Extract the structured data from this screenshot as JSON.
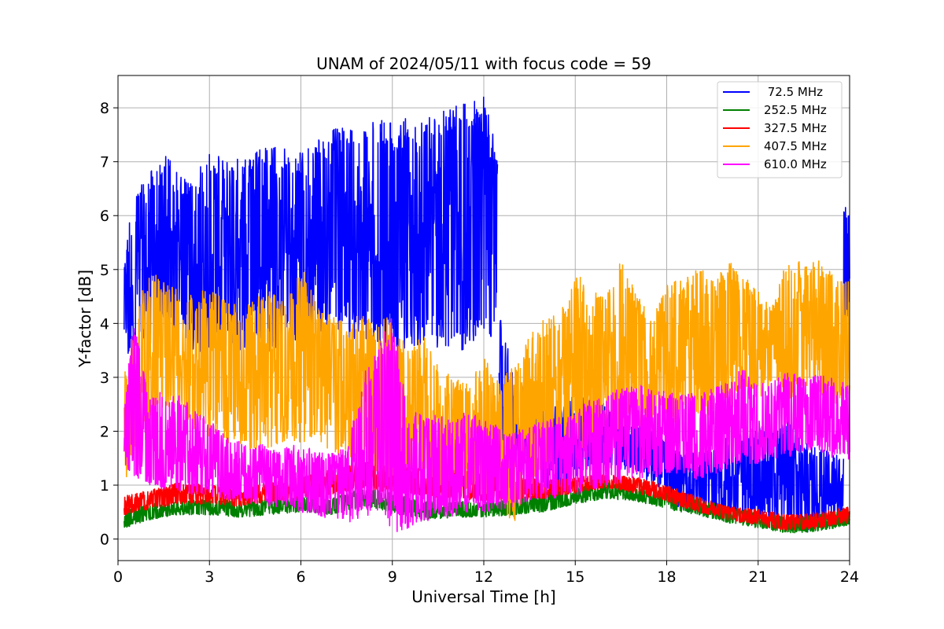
{
  "chart_data": {
    "type": "line",
    "title": "UNAM of 2024/05/11 with focus code = 59",
    "xlabel": "Universal Time [h]",
    "ylabel": "Y-factor [dB]",
    "xlim": [
      0,
      24
    ],
    "ylim": [
      -0.4,
      8.6
    ],
    "xticks": [
      0,
      3,
      6,
      9,
      12,
      15,
      18,
      21,
      24
    ],
    "yticks": [
      0,
      1,
      2,
      3,
      4,
      5,
      6,
      7,
      8
    ],
    "grid": true,
    "legend_position": "top-right",
    "series": [
      {
        "name": " 72.5 MHz",
        "color": "#0000ff",
        "segments": [
          {
            "x": [
              0.2,
              0.5,
              1,
              1.5,
              2,
              2.4,
              3,
              4,
              5,
              6,
              7,
              8,
              9,
              10,
              11,
              12,
              12.45
            ],
            "low": [
              3.2,
              3.5,
              3.6,
              3.8,
              3.8,
              3.5,
              3.4,
              3.5,
              3.4,
              3.6,
              3.7,
              3.6,
              3.5,
              3.6,
              3.4,
              3.6,
              3.8
            ],
            "high": [
              5.2,
              6.5,
              6.8,
              7.2,
              6.8,
              6.6,
              7.2,
              7.1,
              7.3,
              7.2,
              7.6,
              7.7,
              7.8,
              7.8,
              8.1,
              8.2,
              7.3
            ]
          },
          {
            "x": [
              12.5,
              13,
              13.5,
              14,
              14.5,
              15,
              15.5,
              16,
              16.5,
              17,
              17.5,
              18,
              18.5,
              19,
              19.5,
              20,
              20.5,
              21,
              21.5,
              22,
              22.5,
              23,
              23.5,
              23.8
            ],
            "low": [
              1.6,
              1.5,
              1.2,
              0.9,
              0.9,
              1.1,
              1.2,
              1.4,
              1.3,
              1.2,
              1.0,
              0.9,
              0.5,
              0.5,
              0.5,
              0.4,
              0.3,
              0.4,
              0.3,
              0.2,
              0.1,
              0.2,
              0.4,
              0.5
            ],
            "high": [
              4.4,
              2.9,
              2.8,
              2.6,
              2.5,
              2.8,
              2.7,
              2.5,
              2.3,
              2.2,
              2.0,
              1.8,
              1.6,
              1.6,
              1.7,
              1.9,
              2.0,
              2.1,
              2.0,
              2.2,
              1.8,
              1.7,
              1.6,
              1.5
            ]
          },
          {
            "x": [
              23.8,
              23.9,
              24
            ],
            "low": [
              3.6,
              4.0,
              4.2
            ],
            "high": [
              6.4,
              6.2,
              6.1
            ]
          }
        ]
      },
      {
        "name": "252.5 MHz",
        "color": "#008000",
        "segments": [
          {
            "x": [
              0.2,
              1,
              2,
              3,
              4,
              5,
              6,
              7,
              8,
              9,
              10,
              11,
              12,
              13,
              14,
              15,
              16,
              17,
              18,
              19,
              20,
              21,
              22,
              23,
              24
            ],
            "low": [
              0.2,
              0.35,
              0.45,
              0.45,
              0.4,
              0.45,
              0.5,
              0.45,
              0.6,
              0.5,
              0.35,
              0.4,
              0.4,
              0.45,
              0.5,
              0.65,
              0.75,
              0.7,
              0.55,
              0.45,
              0.3,
              0.2,
              0.1,
              0.15,
              0.25
            ],
            "high": [
              0.55,
              0.65,
              0.7,
              0.75,
              0.7,
              0.75,
              0.8,
              0.75,
              0.95,
              0.85,
              0.7,
              0.7,
              0.7,
              0.75,
              0.85,
              0.95,
              1.05,
              1.0,
              0.9,
              0.75,
              0.6,
              0.5,
              0.4,
              0.45,
              0.55
            ]
          }
        ]
      },
      {
        "name": "327.5 MHz",
        "color": "#ff0000",
        "segments": [
          {
            "x": [
              0.2,
              1,
              2,
              3,
              4,
              5,
              6,
              7,
              8,
              9,
              10,
              11,
              12,
              13,
              14,
              15,
              16,
              17,
              18,
              19,
              20,
              21,
              22,
              23,
              24
            ],
            "low": [
              0.45,
              0.55,
              0.65,
              0.65,
              0.6,
              0.7,
              0.75,
              0.8,
              0.95,
              0.85,
              0.8,
              0.75,
              0.7,
              0.7,
              0.75,
              0.85,
              0.95,
              0.85,
              0.7,
              0.5,
              0.35,
              0.25,
              0.15,
              0.2,
              0.3
            ],
            "high": [
              0.8,
              0.9,
              1.05,
              1.0,
              0.95,
              1.05,
              1.15,
              1.3,
              1.45,
              1.35,
              1.3,
              1.3,
              1.2,
              1.15,
              1.1,
              1.15,
              1.2,
              1.15,
              1.0,
              0.8,
              0.6,
              0.55,
              0.45,
              0.5,
              0.6
            ]
          }
        ]
      },
      {
        "name": "407.5 MHz",
        "color": "#ffa500",
        "segments": [
          {
            "x": [
              0.2,
              0.5,
              1,
              1.5,
              2,
              2.5,
              3,
              3.5,
              4,
              4.5,
              5,
              5.5,
              6,
              6.5,
              7,
              7.5,
              8,
              8.5,
              9,
              9.5,
              10,
              10.5,
              11,
              11.5,
              12,
              12.5,
              13,
              13.5,
              14,
              14.5,
              15,
              15.5,
              16,
              16.5,
              17,
              17.5,
              18,
              18.5,
              19,
              19.5,
              20,
              20.5,
              21,
              21.5,
              22,
              22.5,
              23,
              23.5,
              24
            ],
            "low": [
              1.0,
              1.5,
              1.8,
              2.5,
              2.3,
              2.0,
              1.9,
              1.8,
              1.7,
              1.6,
              1.7,
              1.8,
              1.8,
              1.7,
              1.6,
              1.5,
              1.5,
              1.2,
              1.0,
              1.2,
              1.1,
              1.0,
              1.0,
              0.9,
              0.8,
              0.6,
              0.3,
              1.0,
              1.2,
              1.5,
              1.5,
              1.8,
              2.0,
              2.0,
              2.1,
              2.0,
              2.2,
              2.0,
              2.1,
              2.2,
              2.4,
              2.5,
              2.6,
              2.8,
              2.5,
              2.8,
              2.7,
              2.5,
              2.6
            ],
            "high": [
              3.0,
              4.0,
              5.0,
              4.8,
              4.6,
              4.5,
              4.7,
              4.5,
              4.3,
              4.5,
              4.6,
              4.4,
              5.1,
              4.4,
              4.2,
              4.0,
              4.2,
              4.0,
              4.2,
              3.5,
              3.8,
              3.2,
              3.0,
              2.9,
              3.4,
              2.9,
              3.3,
              3.8,
              4.1,
              4.2,
              5.0,
              4.6,
              4.5,
              5.2,
              4.6,
              4.1,
              4.7,
              4.9,
              5.1,
              4.8,
              5.2,
              4.9,
              4.6,
              4.4,
              5.3,
              5.1,
              5.2,
              4.9,
              4.8
            ]
          }
        ]
      },
      {
        "name": "610.0 MHz",
        "color": "#ff00ff",
        "segments": [
          {
            "x": [
              0.2,
              0.5,
              1,
              1.5,
              2,
              2.5,
              3,
              3.5,
              4,
              4.5,
              5,
              5.5,
              6,
              6.5,
              7,
              7.5,
              8,
              8.5,
              9,
              9.5,
              10,
              10.5,
              11,
              11.5,
              12,
              12.5,
              13,
              13.5,
              14,
              14.5,
              15,
              15.5,
              16,
              16.5,
              17,
              17.5,
              18,
              18.5,
              19,
              19.5,
              20,
              20.5,
              21,
              21.5,
              22,
              22.5,
              23,
              23.5,
              24
            ],
            "low": [
              1.0,
              1.1,
              1.0,
              0.9,
              0.9,
              0.8,
              0.8,
              0.7,
              0.7,
              0.6,
              0.6,
              0.6,
              0.5,
              0.4,
              0.4,
              0.3,
              0.3,
              0.5,
              0.1,
              0.2,
              0.3,
              0.4,
              0.4,
              0.5,
              0.5,
              0.5,
              0.6,
              0.7,
              0.7,
              0.8,
              0.8,
              0.9,
              1.0,
              1.0,
              1.1,
              1.1,
              1.2,
              1.2,
              1.1,
              1.2,
              1.3,
              1.4,
              1.4,
              1.5,
              1.5,
              1.6,
              1.6,
              1.5,
              1.4
            ],
            "high": [
              2.3,
              4.3,
              2.6,
              2.8,
              2.7,
              2.4,
              2.2,
              2.0,
              1.8,
              1.8,
              1.7,
              1.7,
              1.8,
              1.6,
              1.6,
              1.7,
              3.0,
              3.5,
              4.2,
              2.4,
              2.3,
              2.3,
              2.2,
              2.4,
              2.2,
              2.1,
              2.0,
              2.1,
              2.2,
              2.3,
              2.4,
              2.6,
              2.7,
              2.8,
              2.9,
              2.8,
              2.8,
              2.7,
              2.7,
              2.8,
              2.9,
              3.2,
              2.9,
              3.0,
              3.1,
              3.0,
              3.1,
              3.0,
              2.9
            ]
          }
        ]
      }
    ]
  }
}
